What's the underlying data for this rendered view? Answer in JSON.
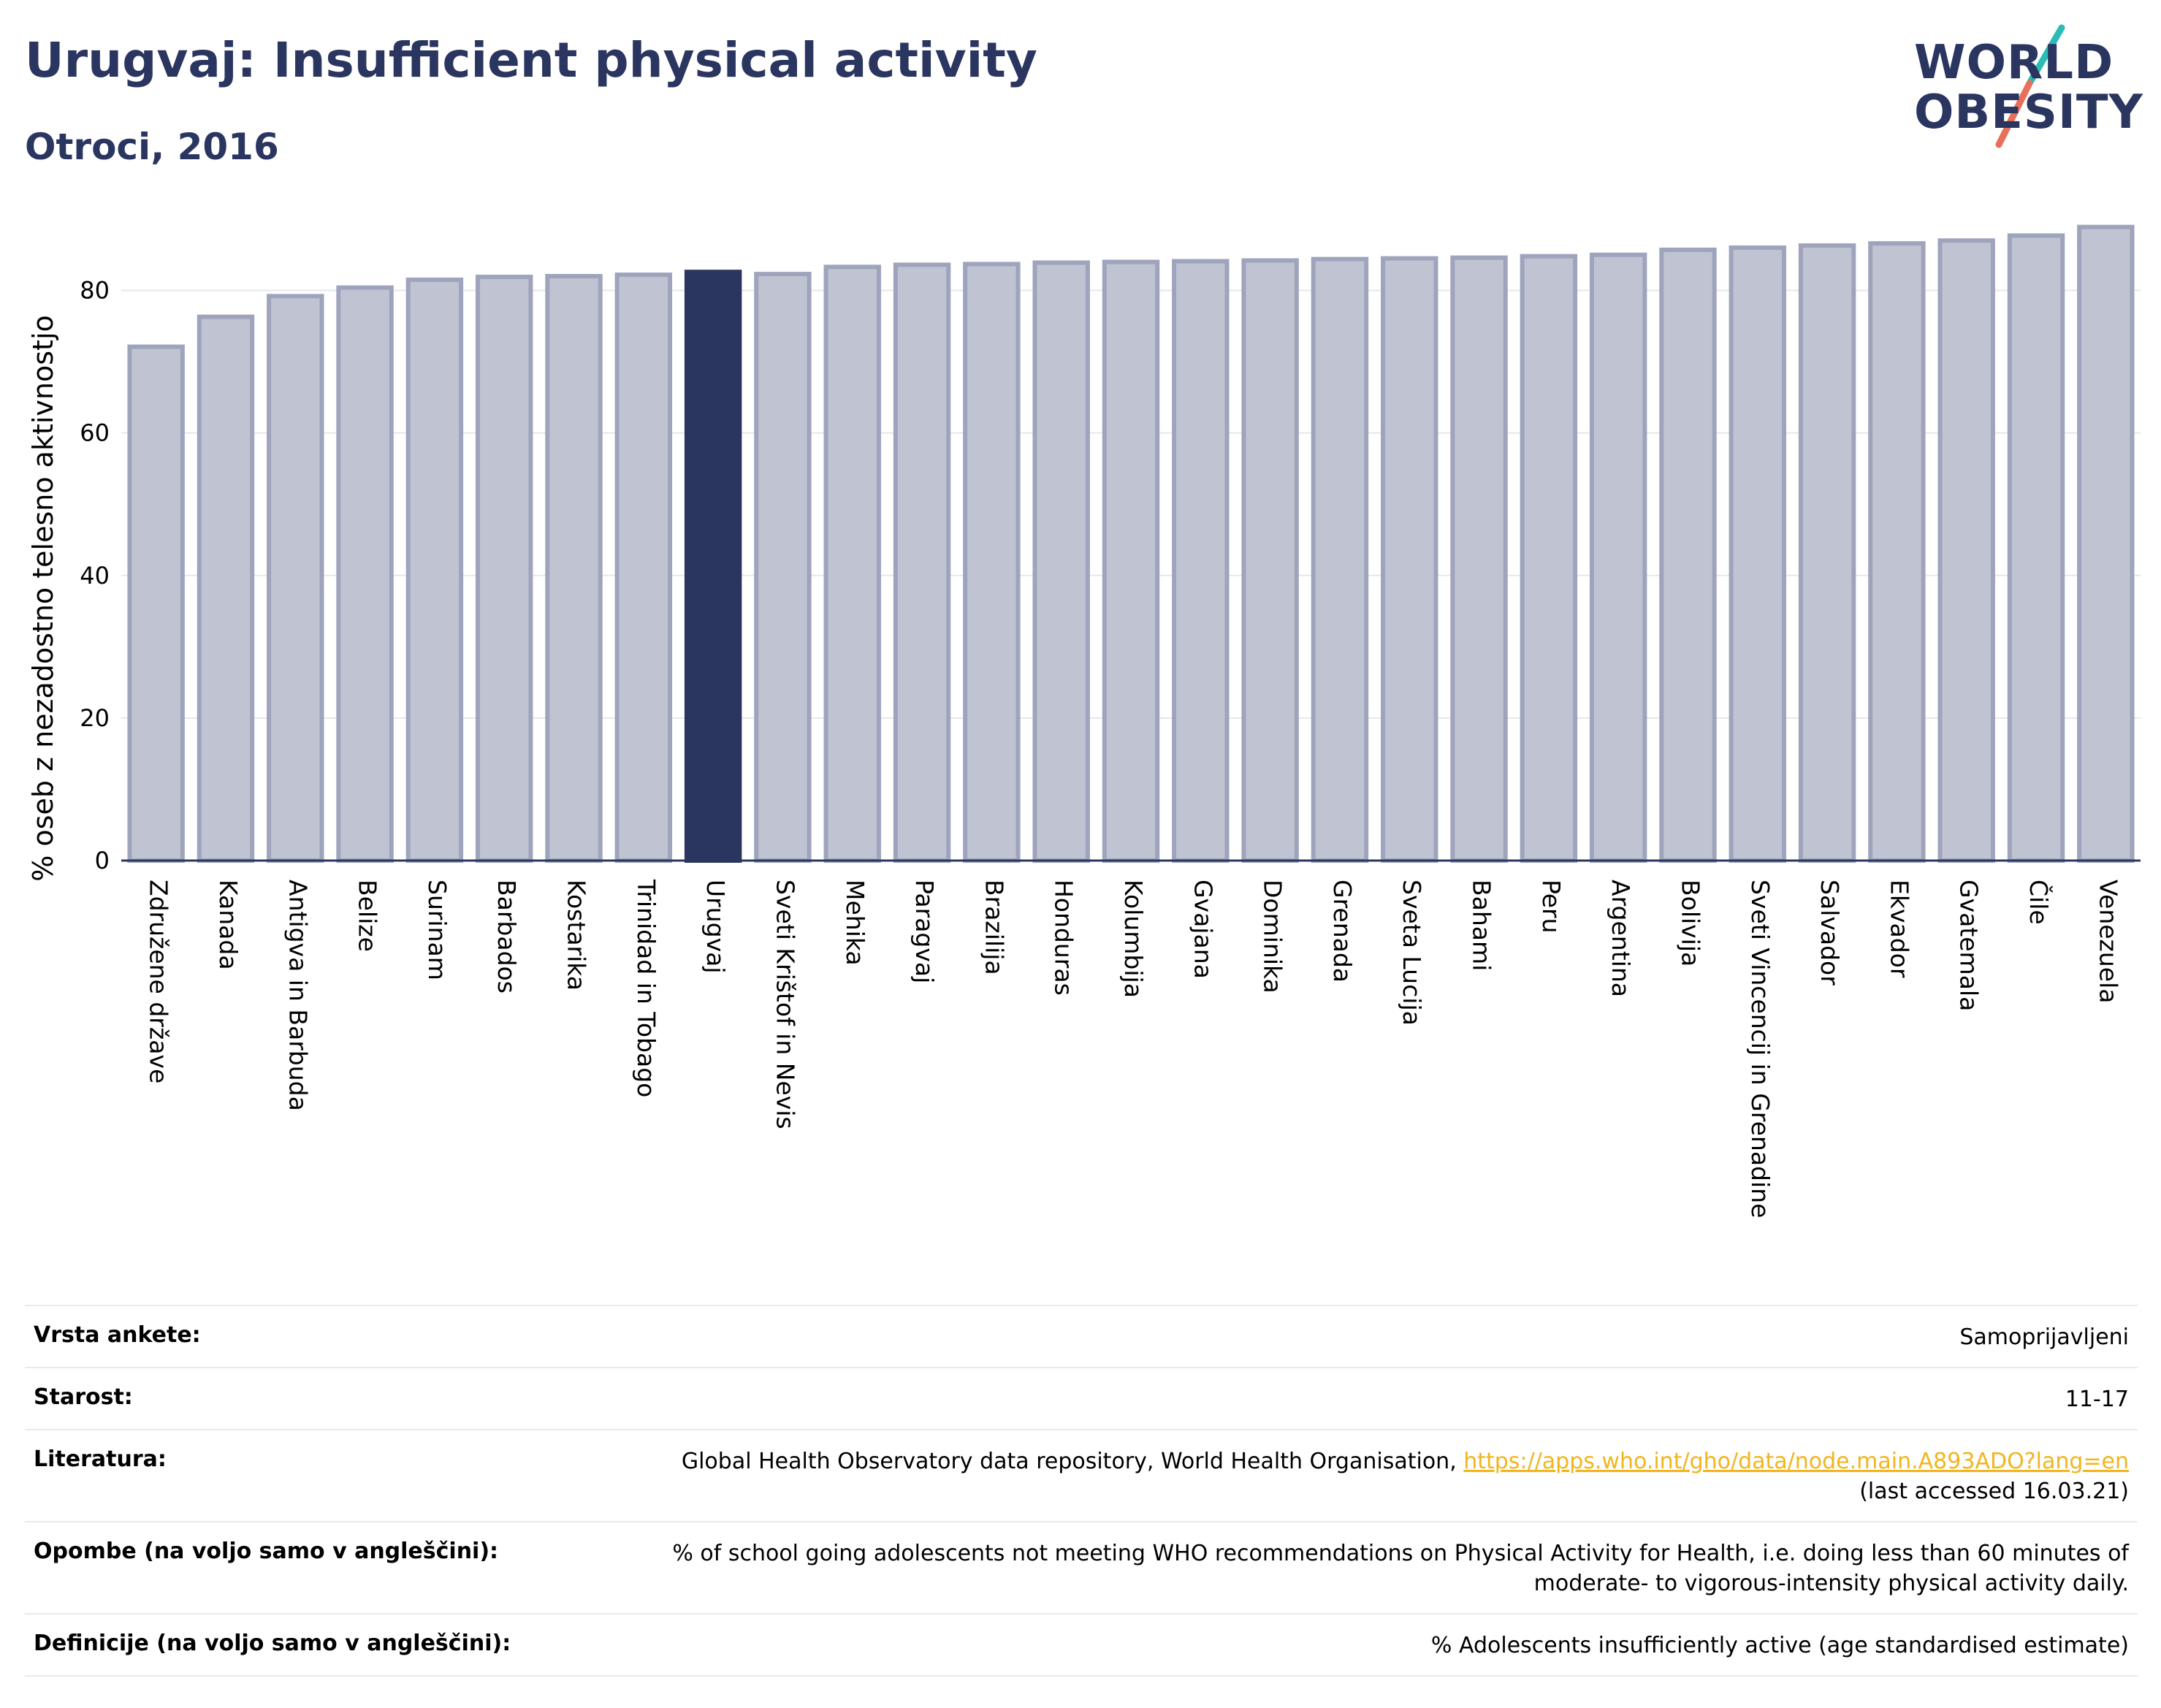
{
  "header": {
    "title": "Urugvaj: Insufficient physical activity",
    "subtitle": "Otroci, 2016"
  },
  "logo": {
    "line1": "WORLD",
    "line2": "OBESITY",
    "colors": {
      "navy": "#2b3660",
      "teal": "#2bbcb5",
      "coral": "#e8705a"
    }
  },
  "chart_data": {
    "type": "bar",
    "title": "Urugvaj: Insufficient physical activity",
    "subtitle": "Otroci, 2016",
    "ylabel": "% oseb z nezadostno telesno aktivnostjo",
    "xlabel": "",
    "ylim": [
      0,
      90
    ],
    "yticks": [
      0,
      20,
      40,
      60,
      80
    ],
    "grid": true,
    "highlight": "Urugvaj",
    "colors": {
      "bar": "#c0c3d1",
      "bar_border": "#9fa4bd",
      "highlight": "#2b3660"
    },
    "categories": [
      "Združene države",
      "Kanada",
      "Antigva in Barbuda",
      "Belize",
      "Surinam",
      "Barbados",
      "Kostarika",
      "Trinidad in Tobago",
      "Urugvaj",
      "Sveti Krištof in Nevis",
      "Mehika",
      "Paragvaj",
      "Brazilija",
      "Honduras",
      "Kolumbija",
      "Gvajana",
      "Dominika",
      "Grenada",
      "Sveta Lucija",
      "Bahami",
      "Peru",
      "Argentina",
      "Bolivija",
      "Sveti Vincencij in Grenadine",
      "Salvador",
      "Ekvador",
      "Gvatemala",
      "Čile",
      "Venezuela"
    ],
    "values": [
      72.1,
      76.3,
      79.2,
      80.4,
      81.5,
      81.9,
      82.0,
      82.2,
      82.6,
      82.3,
      83.3,
      83.6,
      83.7,
      83.9,
      84.0,
      84.1,
      84.2,
      84.4,
      84.5,
      84.6,
      84.8,
      85.0,
      85.7,
      86.0,
      86.3,
      86.6,
      87.0,
      87.7,
      88.9
    ]
  },
  "info": {
    "rows": [
      {
        "label": "Vrsta ankete:",
        "value": "Samoprijavljeni"
      },
      {
        "label": "Starost:",
        "value": "11-17"
      },
      {
        "label": "Literatura:",
        "value_prefix": "Global Health Observatory data repository, World Health Organisation, ",
        "link": "https://apps.who.int/gho/data/node.main.A893ADO?lang=en",
        "value_suffix": "(last accessed 16.03.21)"
      },
      {
        "label": "Opombe (na voljo samo v angleščini):",
        "value": "% of school going adolescents not meeting WHO recommendations on Physical Activity for Health, i.e. doing less than 60 minutes of moderate- to vigorous-intensity physical activity daily."
      },
      {
        "label": "Definicije (na voljo samo v angleščini):",
        "value": "% Adolescents insufficiently active (age standardised estimate)"
      }
    ]
  }
}
